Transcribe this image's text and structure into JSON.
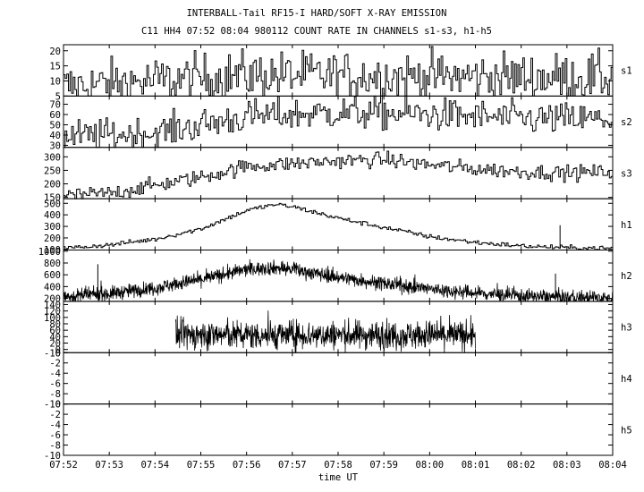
{
  "title_line1": "INTERBALL-Tail RF15-I HARD/SOFT X-RAY EMISSION",
  "title_line2": "C11 HH4 07:52 08:04 980112  COUNT RATE IN CHANNELS s1-s3, h1-h5",
  "xlabel": "time UT",
  "chart_data": {
    "type": "line",
    "title": "INTERBALL-Tail RF15-I HARD/SOFT X-RAY EMISSION",
    "subtitle": "C11 HH4 07:52 08:04 980112  COUNT RATE IN CHANNELS s1-s3, h1-h5",
    "xlabel": "time UT",
    "x_ticks": [
      "07:52",
      "07:53",
      "07:54",
      "07:55",
      "07:56",
      "07:57",
      "07:58",
      "07:59",
      "08:00",
      "08:01",
      "08:02",
      "08:03",
      "08:04"
    ],
    "xlim_minutes": [
      0,
      12
    ],
    "panels": [
      {
        "name": "s1",
        "ylim": [
          5,
          22
        ],
        "yticks": [
          5,
          10,
          15,
          20
        ],
        "profile": {
          "t": [
            0,
            4,
            12
          ],
          "v": [
            8,
            12,
            11
          ]
        },
        "noise": 4,
        "style": "step"
      },
      {
        "name": "s2",
        "ylim": [
          28,
          78
        ],
        "yticks": [
          30,
          40,
          50,
          60,
          70
        ],
        "profile": {
          "t": [
            0,
            2,
            4,
            6,
            8,
            10,
            12
          ],
          "v": [
            38,
            42,
            58,
            62,
            60,
            56,
            55
          ]
        },
        "noise": 8,
        "style": "step"
      },
      {
        "name": "s3",
        "ylim": [
          145,
          335
        ],
        "yticks": [
          150,
          200,
          250,
          300
        ],
        "profile": {
          "t": [
            0,
            1,
            2,
            3,
            4,
            5,
            6,
            7,
            8,
            9,
            10,
            11,
            12
          ],
          "v": [
            155,
            165,
            195,
            225,
            265,
            275,
            285,
            290,
            270,
            255,
            245,
            240,
            245
          ]
        },
        "noise": 14,
        "style": "step"
      },
      {
        "name": "h1",
        "ylim": [
          95,
          540
        ],
        "yticks": [
          100,
          200,
          300,
          400,
          500
        ],
        "profile": {
          "t": [
            0,
            1,
            2,
            3,
            4,
            4.6,
            5,
            6,
            7,
            8,
            9,
            10,
            11,
            12
          ],
          "v": [
            110,
            140,
            190,
            280,
            440,
            490,
            470,
            370,
            290,
            210,
            160,
            130,
            115,
            110
          ]
        },
        "noise": 10,
        "style": "step",
        "spikes": [
          {
            "t": 10.85,
            "v": 310
          }
        ]
      },
      {
        "name": "h2",
        "ylim": [
          150,
          1020
        ],
        "yticks": [
          200,
          400,
          600,
          800,
          1000
        ],
        "profile": {
          "t": [
            0,
            1,
            2,
            3,
            4,
            4.6,
            5,
            6,
            7,
            8,
            9,
            10,
            11,
            12
          ],
          "v": [
            230,
            280,
            380,
            520,
            690,
            720,
            690,
            560,
            450,
            360,
            290,
            240,
            215,
            205
          ]
        },
        "noise": 60,
        "style": "dense",
        "spikes": [
          {
            "t": 0.75,
            "v": 780
          },
          {
            "t": 10.75,
            "v": 620
          }
        ]
      },
      {
        "name": "h3",
        "ylim": [
          -10,
          150
        ],
        "yticks": [
          -10,
          0,
          20,
          40,
          60,
          80,
          100,
          120,
          140
        ],
        "profile": {
          "t": [
            2.45,
            12
          ],
          "v": [
            45,
            45
          ]
        },
        "noise": 22,
        "style": "dense",
        "range_minutes": [
          2.45,
          9.0
        ]
      },
      {
        "name": "h4",
        "ylim": [
          -10,
          0
        ],
        "yticks": [
          -10,
          -8,
          -6,
          -4,
          -2,
          0
        ],
        "style": "empty"
      },
      {
        "name": "h5",
        "ylim": [
          -10,
          0
        ],
        "yticks": [
          -10,
          -8,
          -6,
          -4,
          -2,
          0
        ],
        "style": "empty"
      }
    ]
  }
}
